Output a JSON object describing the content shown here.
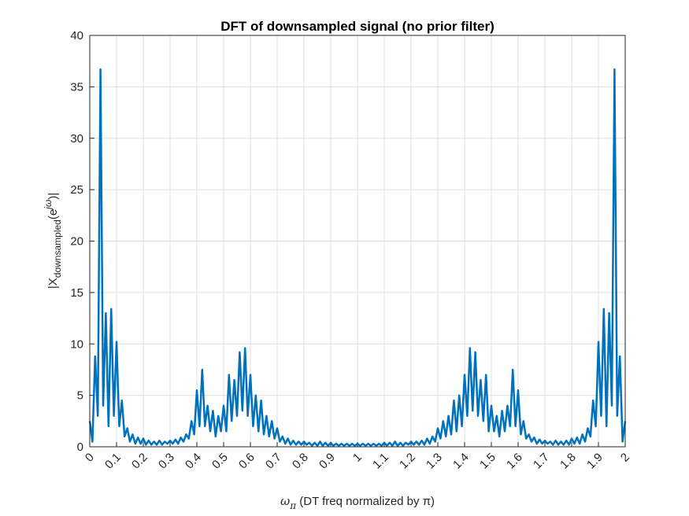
{
  "chart_data": {
    "type": "line",
    "title": "DFT of downsampled signal (no prior filter)",
    "xlabel": {
      "symbol": "ω",
      "sub": "π",
      "text": " (DT freq normalized by π)"
    },
    "ylabel": {
      "base": "|X",
      "sub": "downsampled",
      "mid": "(e",
      "sup": "jω",
      "end": ")|"
    },
    "x": [
      0,
      0.01,
      0.02,
      0.03,
      0.04,
      0.05,
      0.06,
      0.07,
      0.08,
      0.09,
      0.1,
      0.11,
      0.12,
      0.13,
      0.14,
      0.15,
      0.16,
      0.17,
      0.18,
      0.19,
      0.2,
      0.21,
      0.22,
      0.23,
      0.24,
      0.25,
      0.26,
      0.27,
      0.28,
      0.29,
      0.3,
      0.31,
      0.32,
      0.33,
      0.34,
      0.35,
      0.36,
      0.37,
      0.38,
      0.39,
      0.4,
      0.41,
      0.42,
      0.43,
      0.44,
      0.45,
      0.46,
      0.47,
      0.48,
      0.49,
      0.5,
      0.51,
      0.52,
      0.53,
      0.54,
      0.55,
      0.56,
      0.57,
      0.58,
      0.59,
      0.6,
      0.61,
      0.62,
      0.63,
      0.64,
      0.65,
      0.66,
      0.67,
      0.68,
      0.69,
      0.7,
      0.71,
      0.72,
      0.73,
      0.74,
      0.75,
      0.76,
      0.77,
      0.78,
      0.79,
      0.8,
      0.81,
      0.82,
      0.83,
      0.84,
      0.85,
      0.86,
      0.87,
      0.88,
      0.89,
      0.9,
      0.91,
      0.92,
      0.93,
      0.94,
      0.95,
      0.96,
      0.97,
      0.98,
      0.99,
      1,
      1.01,
      1.02,
      1.03,
      1.04,
      1.05,
      1.06,
      1.07,
      1.08,
      1.09,
      1.1,
      1.11,
      1.12,
      1.13,
      1.14,
      1.15,
      1.16,
      1.17,
      1.18,
      1.19,
      1.2,
      1.21,
      1.22,
      1.23,
      1.24,
      1.25,
      1.26,
      1.27,
      1.28,
      1.29,
      1.3,
      1.31,
      1.32,
      1.33,
      1.34,
      1.35,
      1.36,
      1.37,
      1.38,
      1.39,
      1.4,
      1.41,
      1.42,
      1.43,
      1.44,
      1.45,
      1.46,
      1.47,
      1.48,
      1.49,
      1.5,
      1.51,
      1.52,
      1.53,
      1.54,
      1.55,
      1.56,
      1.57,
      1.58,
      1.59,
      1.6,
      1.61,
      1.62,
      1.63,
      1.64,
      1.65,
      1.66,
      1.67,
      1.68,
      1.69,
      1.7,
      1.71,
      1.72,
      1.73,
      1.74,
      1.75,
      1.76,
      1.77,
      1.78,
      1.79,
      1.8,
      1.81,
      1.82,
      1.83,
      1.84,
      1.85,
      1.86,
      1.87,
      1.88,
      1.89,
      1.9,
      1.91,
      1.92,
      1.93,
      1.94,
      1.95,
      1.96,
      1.97,
      1.98,
      1.99,
      2
    ],
    "series": [
      {
        "color": "#0072BD",
        "values": [
          2.5,
          0.5,
          8.8,
          3,
          36.7,
          4,
          13,
          2,
          13.4,
          3,
          10.2,
          2,
          4.5,
          1,
          1.8,
          0.5,
          1.2,
          0.3,
          0.9,
          0.3,
          0.8,
          0.2,
          0.6,
          0.2,
          0.5,
          0.2,
          0.6,
          0.2,
          0.5,
          0.3,
          0.6,
          0.3,
          0.7,
          0.3,
          0.9,
          0.5,
          1.2,
          0.8,
          2.5,
          1.2,
          5.5,
          2,
          7.5,
          2,
          4,
          1.5,
          3.5,
          1,
          3,
          1.5,
          4,
          1.5,
          7,
          2.5,
          6.5,
          3,
          9.2,
          3.5,
          9.6,
          3,
          7,
          2,
          5,
          1.5,
          4.5,
          1.2,
          3,
          1,
          2.5,
          0.8,
          1.8,
          0.5,
          1,
          0.3,
          0.8,
          0.2,
          0.6,
          0.2,
          0.5,
          0.2,
          0.5,
          0.2,
          0.4,
          0.1,
          0.4,
          0.1,
          0.5,
          0.1,
          0.4,
          0.1,
          0.4,
          0.1,
          0.3,
          0.1,
          0.3,
          0.1,
          0.3,
          0.1,
          0.3,
          0.1,
          0.3,
          0.1,
          0.3,
          0.1,
          0.3,
          0.1,
          0.3,
          0.1,
          0.3,
          0.1,
          0.4,
          0.1,
          0.4,
          0.1,
          0.5,
          0.1,
          0.4,
          0.1,
          0.4,
          0.2,
          0.5,
          0.2,
          0.5,
          0.2,
          0.6,
          0.2,
          0.8,
          0.3,
          1,
          0.5,
          1.8,
          0.8,
          2.5,
          1,
          3,
          1.2,
          4.5,
          1.5,
          5,
          2,
          7,
          3,
          9.6,
          3.5,
          9.2,
          3,
          6.5,
          2.5,
          7,
          1.5,
          4,
          1.5,
          3,
          1,
          3.5,
          1.5,
          4,
          2,
          7.5,
          2,
          5.5,
          1.2,
          2.5,
          0.8,
          1.2,
          0.5,
          0.9,
          0.3,
          0.7,
          0.3,
          0.6,
          0.3,
          0.5,
          0.2,
          0.6,
          0.2,
          0.5,
          0.2,
          0.6,
          0.2,
          0.8,
          0.3,
          0.9,
          0.3,
          1.2,
          0.5,
          1.8,
          1,
          4.5,
          2,
          10.2,
          3,
          13.4,
          2,
          13,
          4,
          36.7,
          3,
          8.8,
          0.5,
          2.5
        ]
      }
    ],
    "xlim": [
      0,
      2
    ],
    "xticks": [
      0,
      0.1,
      0.2,
      0.3,
      0.4,
      0.5,
      0.6,
      0.7,
      0.8,
      0.9,
      1,
      1.1,
      1.2,
      1.3,
      1.4,
      1.5,
      1.6,
      1.7,
      1.8,
      1.9,
      2
    ],
    "ylim": [
      0,
      40
    ],
    "yticks": [
      0,
      5,
      10,
      15,
      20,
      25,
      30,
      35,
      40
    ],
    "grid": true
  }
}
